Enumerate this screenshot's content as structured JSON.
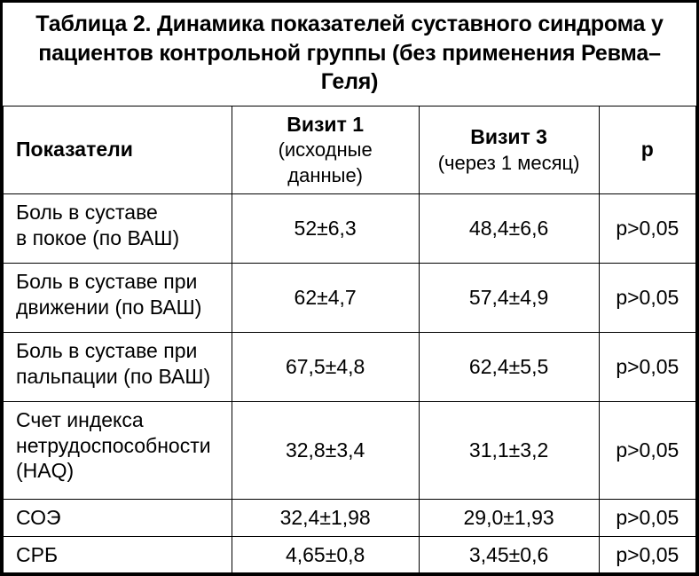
{
  "caption": "Таблица 2. Динамика показателей суставного синдрома у пациентов контрольной группы (без применения Ревма–Геля)",
  "headers": {
    "metric": "Показатели",
    "visit1_top": "Визит 1",
    "visit1_sub": "(исходные данные)",
    "visit3_top": "Визит 3",
    "visit3_sub": "(через 1 месяц)",
    "p": "р"
  },
  "rows": [
    {
      "metric": "Боль в суставе\nв покое (по ВАШ)",
      "v1": "52±6,3",
      "v3": "48,4±6,6",
      "p": "р>0,05",
      "size": "row-tall"
    },
    {
      "metric": "Боль в суставе при\nдвижении (по ВАШ)",
      "v1": "62±4,7",
      "v3": "57,4±4,9",
      "p": "р>0,05",
      "size": "row-tall"
    },
    {
      "metric": "Боль в суставе при\nпальпации (по ВАШ)",
      "v1": "67,5±4,8",
      "v3": "62,4±5,5",
      "p": "р>0,05",
      "size": "row-tall"
    },
    {
      "metric": "Счет индекса\nнетрудоспособности\n(HAQ)",
      "v1": "32,8±3,4",
      "v3": "31,1±3,2",
      "p": "р>0,05",
      "size": "row-xtall"
    },
    {
      "metric": "СОЭ",
      "v1": "32,4±1,98",
      "v3": "29,0±1,93",
      "p": "р>0,05",
      "size": "row-short"
    },
    {
      "metric": "СРБ",
      "v1": "4,65±0,8",
      "v3": "3,45±0,6",
      "p": "р>0,05",
      "size": "row-short"
    }
  ],
  "columns": {
    "widths": {
      "metric": "33%",
      "v1": "27%",
      "v3": "26%",
      "p": "14%"
    }
  },
  "style": {
    "background_color": "#ffffff",
    "border_color": "#000000",
    "font_family": "Arial",
    "caption_fontsize": 25,
    "cell_fontsize": 23
  }
}
